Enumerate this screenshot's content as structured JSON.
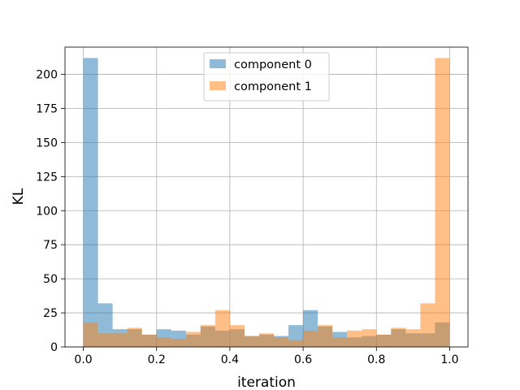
{
  "chart_data": {
    "type": "bar",
    "subtype": "histogram",
    "title": "",
    "xlabel": "iteration",
    "ylabel": "KL",
    "xlim": [
      -0.05,
      1.05
    ],
    "ylim": [
      0,
      220
    ],
    "xticks": [
      0.0,
      0.2,
      0.4,
      0.6,
      0.8,
      1.0
    ],
    "xtick_labels": [
      "0.0",
      "0.2",
      "0.4",
      "0.6",
      "0.8",
      "1.0"
    ],
    "yticks": [
      0,
      25,
      50,
      75,
      100,
      125,
      150,
      175,
      200
    ],
    "ytick_labels": [
      "0",
      "25",
      "50",
      "75",
      "100",
      "125",
      "150",
      "175",
      "200"
    ],
    "grid": true,
    "legend": "top-center",
    "bin_edges": [
      0.0,
      0.04,
      0.08,
      0.12,
      0.16,
      0.2,
      0.24,
      0.28,
      0.32,
      0.36,
      0.4,
      0.44,
      0.48,
      0.52,
      0.56,
      0.6,
      0.64,
      0.68,
      0.72,
      0.76,
      0.8,
      0.84,
      0.88,
      0.92,
      0.96,
      1.0
    ],
    "series": [
      {
        "name": "component 0",
        "color": "#1f77b4",
        "opacity": 0.5,
        "values": [
          212,
          32,
          13,
          13,
          9,
          13,
          12,
          9,
          15,
          12,
          13,
          8,
          9,
          8,
          16,
          27,
          15,
          11,
          7,
          8,
          9,
          13,
          10,
          10,
          18
        ]
      },
      {
        "name": "component 1",
        "color": "#ff7f0e",
        "opacity": 0.5,
        "values": [
          18,
          10,
          10,
          14,
          9,
          7,
          6,
          11,
          16,
          27,
          16,
          8,
          10,
          7,
          5,
          12,
          16,
          7,
          12,
          13,
          9,
          14,
          13,
          32,
          212
        ]
      }
    ]
  }
}
